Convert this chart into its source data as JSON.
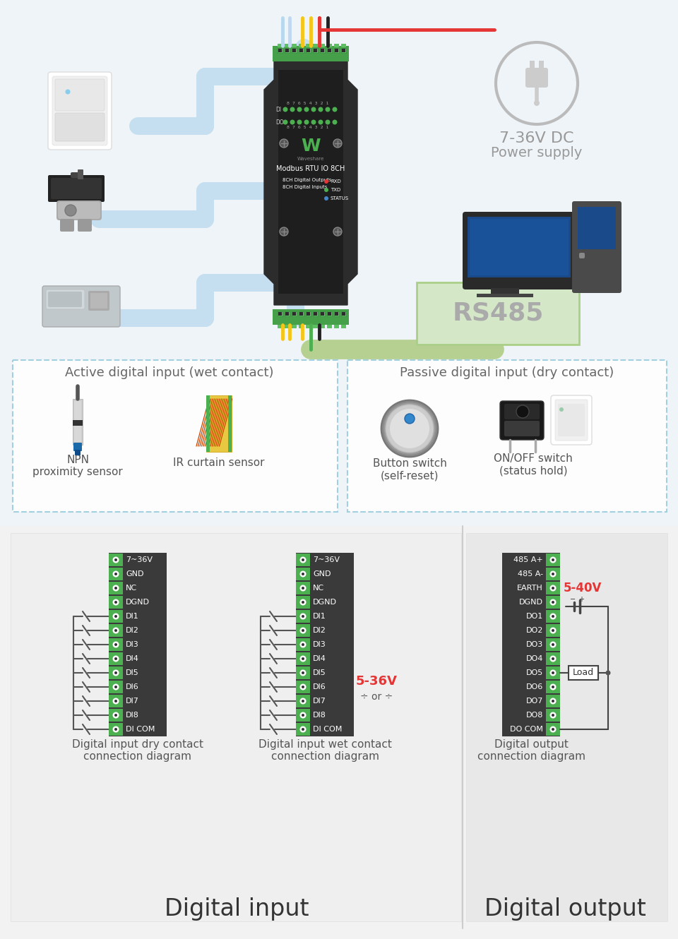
{
  "bg_color": "#eef4f8",
  "box_left_title": "Active digital input (wet contact)",
  "box_right_title": "Passive digital input (dry contact)",
  "box_left_items": [
    "NPN\nproximity sensor",
    "IR curtain sensor"
  ],
  "box_right_items": [
    "Button switch\n(self-reset)",
    "ON/OFF switch\n(status hold)"
  ],
  "power_label_line1": "7-36V DC",
  "power_label_line2": "Power supply",
  "rs485_label": "RS485",
  "di_labels": [
    "7~36V",
    "GND",
    "NC",
    "DGND",
    "DI1",
    "DI2",
    "DI3",
    "DI4",
    "DI5",
    "DI6",
    "DI7",
    "DI8",
    "DI COM"
  ],
  "do_labels": [
    "485 A+",
    "485 A-",
    "EARTH",
    "DGND",
    "DO1",
    "DO2",
    "DO3",
    "DO4",
    "DO5",
    "DO6",
    "DO7",
    "DO8",
    "DO COM"
  ],
  "voltage_wet": "5-36V",
  "voltage_out": "5-40V",
  "diag_left_title": "Digital input dry contact\nconnection diagram",
  "diag_mid_title": "Digital input wet contact\nconnection diagram",
  "diag_right_title": "Digital output\nconnection diagram",
  "section_left": "Digital input",
  "section_right": "Digital output",
  "connector_dark": "#3a3a3a",
  "connector_green": "#4caf50",
  "red_color": "#e53535",
  "wire_blue": "#c5dff0",
  "wire_yellow": "#f5c518",
  "wire_green": "#a8c878",
  "wire_red": "#e53535",
  "wire_black": "#222222",
  "rs485_bg": "#d4e8c8",
  "rs485_border": "#aacf88",
  "rs485_text": "#aaaaaa",
  "power_gray": "#999999",
  "diag_bg": "#f0f0f0",
  "diag_bg2": "#e8e8e8",
  "dashed_color": "#99ccdd"
}
